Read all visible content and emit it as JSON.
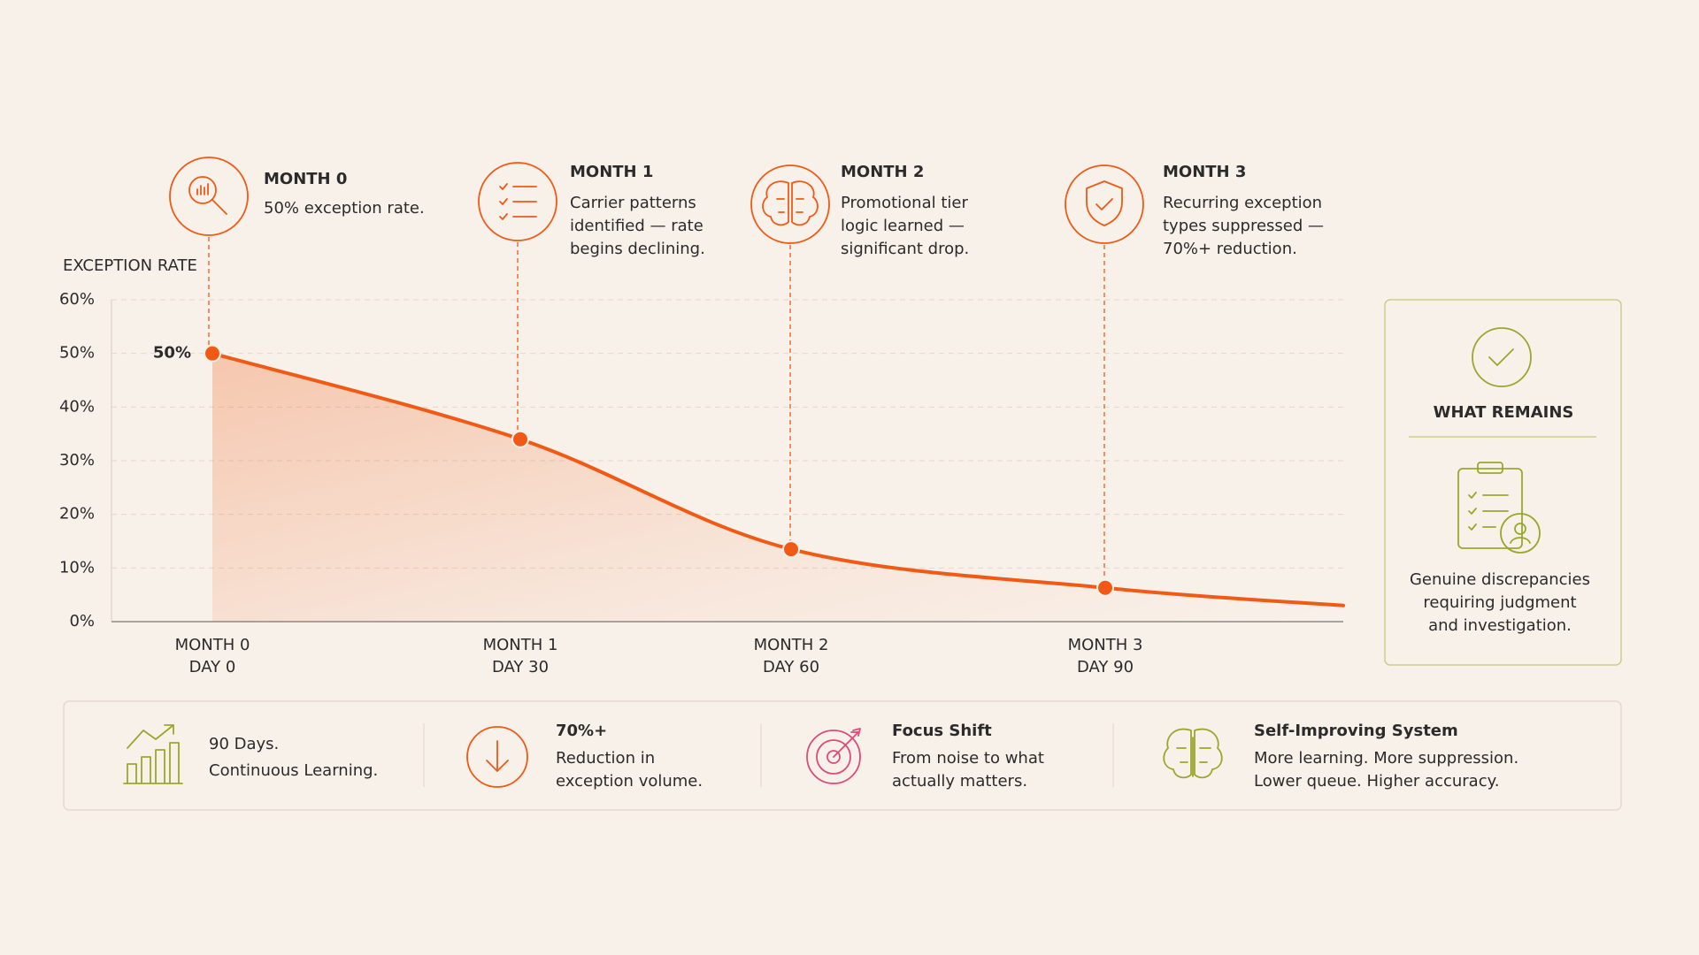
{
  "chart_data": {
    "type": "line",
    "y_axis_label": "EXCEPTION RATE",
    "categories": [
      "MONTH 0",
      "MONTH 1",
      "MONTH 2",
      "MONTH 3",
      null
    ],
    "category_sublabels": [
      "DAY 0",
      "DAY 30",
      "DAY 60",
      "DAY 90",
      null
    ],
    "values": [
      50,
      34,
      13.5,
      6.3,
      3
    ],
    "value_labels": [
      "50%",
      null,
      null,
      null,
      null
    ],
    "color": "#f05a14",
    "ylim": [
      0,
      60
    ],
    "yticks": [
      {
        "value": 0,
        "label": "0%"
      },
      {
        "value": 10,
        "label": "10%"
      },
      {
        "value": 20,
        "label": "20%"
      },
      {
        "value": 30,
        "label": "30%"
      },
      {
        "value": 40,
        "label": "40%"
      },
      {
        "value": 50,
        "label": "50%"
      },
      {
        "value": 60,
        "label": "60%"
      }
    ],
    "grid": true,
    "annotations": [
      {
        "title": "MONTH 0",
        "text": [
          "50% exception rate."
        ]
      },
      {
        "title": "MONTH 1",
        "text": [
          "Carrier patterns",
          "identified — rate",
          "begins declining."
        ]
      },
      {
        "title": "MONTH 2",
        "text": [
          "Promotional tier",
          "logic learned —",
          "significant drop."
        ]
      },
      {
        "title": "MONTH 3",
        "text": [
          "Recurring exception",
          "types suppressed —",
          "70%+ reduction."
        ]
      }
    ]
  },
  "panel": {
    "title": "WHAT REMAINS",
    "text": [
      "Genuine discrepancies",
      "requiring judgment",
      "and investigation."
    ],
    "color": "#98a82c"
  },
  "summary": [
    {
      "lines": [
        "90 Days.",
        "Continuous Learning."
      ],
      "color": "#98a82c"
    },
    {
      "title": "70%+",
      "lines": [
        "Reduction in",
        "exception volume."
      ],
      "color": "#f05a14"
    },
    {
      "title": "Focus Shift",
      "lines": [
        "From noise to what",
        "actually matters."
      ],
      "color": "#dc4b7c"
    },
    {
      "title": "Self-Improving System",
      "lines": [
        "More learning. More suppression.",
        "Lower queue. Higher accuracy."
      ],
      "color": "#98a82c"
    }
  ]
}
